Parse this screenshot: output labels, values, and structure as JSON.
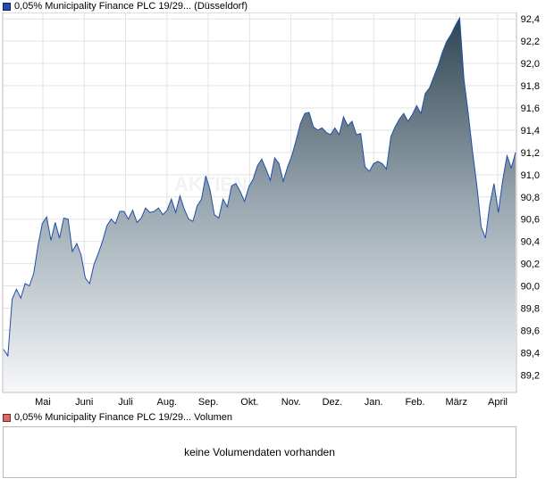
{
  "price_legend": {
    "label": "0,05% Municipality Finance PLC 19/29... (Düsseldorf)",
    "color": "#1f4fa8"
  },
  "volume_legend": {
    "label": "0,05% Municipality Finance PLC 19/29... Volumen",
    "color": "#d96b6b"
  },
  "volume_panel": {
    "message": "keine Volumendaten vorhanden"
  },
  "chart_data": {
    "type": "area",
    "series": [
      {
        "values": [
          89.43,
          89.37,
          89.88,
          89.97,
          89.89,
          90.02,
          90.0,
          90.11,
          90.36,
          90.56,
          90.62,
          90.41,
          90.57,
          90.43,
          90.61,
          90.6,
          90.31,
          90.38,
          90.28,
          90.07,
          90.02,
          90.19,
          90.29,
          90.4,
          90.54,
          90.6,
          90.56,
          90.67,
          90.67,
          90.6,
          90.68,
          90.57,
          90.61,
          90.7,
          90.66,
          90.67,
          90.7,
          90.64,
          90.68,
          90.78,
          90.66,
          90.81,
          90.69,
          90.6,
          90.58,
          90.72,
          90.78,
          90.99,
          90.86,
          90.64,
          90.61,
          90.78,
          90.71,
          90.9,
          90.92,
          90.85,
          90.76,
          90.89,
          90.96,
          91.08,
          91.14,
          91.05,
          90.95,
          91.15,
          91.1,
          90.94,
          91.07,
          91.17,
          91.31,
          91.46,
          91.55,
          91.56,
          91.43,
          91.4,
          91.42,
          91.38,
          91.36,
          91.42,
          91.36,
          91.52,
          91.44,
          91.48,
          91.36,
          91.37,
          91.07,
          91.03,
          91.1,
          91.12,
          91.1,
          91.05,
          91.34,
          91.43,
          91.5,
          91.55,
          91.48,
          91.54,
          91.62,
          91.55,
          91.73,
          91.78,
          91.88,
          91.98,
          92.1,
          92.2,
          92.26,
          92.34,
          92.41,
          91.86,
          91.55,
          91.21,
          90.9,
          90.53,
          90.43,
          90.73,
          90.92,
          90.66,
          90.95,
          91.17,
          91.06,
          91.2
        ]
      }
    ],
    "x_tick_labels": [
      "Mai",
      "Juni",
      "Juli",
      "Aug.",
      "Sep.",
      "Okt.",
      "Nov.",
      "Dez.",
      "Jan.",
      "Feb.",
      "März",
      "April"
    ],
    "y_tick_labels": [
      "92,4",
      "92,2",
      "92,0",
      "91,8",
      "91,6",
      "91,4",
      "91,2",
      "91,0",
      "90,8",
      "90,6",
      "90,4",
      "90,2",
      "90,0",
      "89,8",
      "89,6",
      "89,4",
      "89,2"
    ],
    "ylim": [
      89.05,
      92.45
    ],
    "grid": true,
    "fill": "gradient",
    "line_color": "#1f4fa8"
  }
}
